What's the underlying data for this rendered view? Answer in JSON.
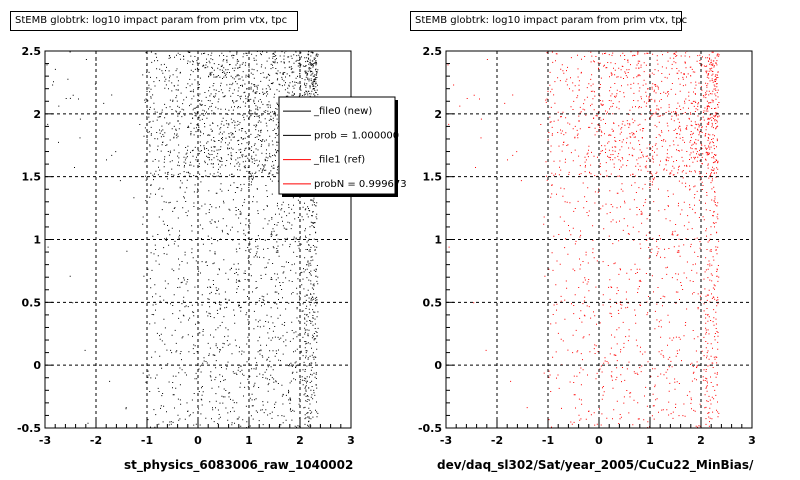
{
  "chart_data": [
    {
      "type": "scatter",
      "title": "StEMB globtrk: log10 impact param from prim vtx, tpc",
      "xlabel": "st_physics_6083006_raw_1040002",
      "ylabel": "",
      "xlim": [
        -3,
        3
      ],
      "ylim": [
        -0.5,
        2.5
      ],
      "x_ticks": [
        "-3",
        "-2",
        "-1",
        "0",
        "1",
        "2",
        "3"
      ],
      "y_ticks": [
        "-0.5",
        "0",
        "0.5",
        "1",
        "1.5",
        "2",
        "2.5"
      ],
      "grid": true,
      "color": "#000000",
      "legend": {
        "placement": "top-right",
        "entries": [
          {
            "label": "_file0 (new)",
            "color": "#000000"
          },
          {
            "label": "prob = 1.000000",
            "color": "#000000"
          },
          {
            "label": "_file1 (ref)",
            "color": "#ff0000"
          },
          {
            "label": "probN = 0.999673",
            "color": "#ff0000"
          }
        ]
      },
      "distribution": {
        "x_range": [
          -1.1,
          2.4
        ],
        "x_sharp_edge": 2.2,
        "y_range": [
          -0.5,
          2.5
        ],
        "dense_band_y": [
          1.5,
          2.5
        ]
      }
    },
    {
      "type": "scatter",
      "title": "StEMB globtrk: log10 impact param from prim vtx, tpc",
      "xlabel": "dev/daq_sl302/Sat/year_2005/CuCu22_MinBias/",
      "ylabel": "",
      "xlim": [
        -3,
        3
      ],
      "ylim": [
        -0.5,
        2.5
      ],
      "x_ticks": [
        "-3",
        "-2",
        "-1",
        "0",
        "1",
        "2",
        "3"
      ],
      "y_ticks": [
        "-0.5",
        "0",
        "0.5",
        "1",
        "1.5",
        "2",
        "2.5"
      ],
      "grid": true,
      "color": "#ff0000",
      "distribution": {
        "x_range": [
          -1.1,
          2.4
        ],
        "x_sharp_edge": 2.2,
        "y_range": [
          -0.5,
          2.5
        ],
        "dense_band_y": [
          1.5,
          2.5
        ]
      }
    }
  ],
  "footer": "... ..."
}
